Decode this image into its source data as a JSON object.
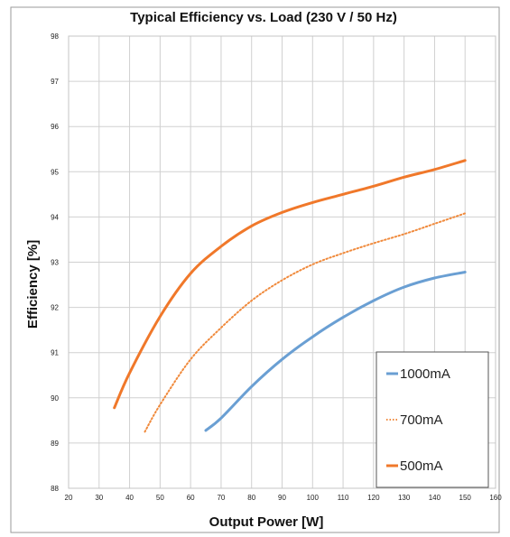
{
  "chart_data": {
    "type": "line",
    "title": "Typical Efficiency vs. Load (230 V / 50 Hz)",
    "xlabel": "Output Power [W]",
    "ylabel": "Efficiency [%]",
    "xlim": [
      20,
      160
    ],
    "ylim": [
      88,
      98
    ],
    "xticks": [
      "20",
      "30",
      "40",
      "50",
      "60",
      "70",
      "80",
      "90",
      "100",
      "110",
      "120",
      "130",
      "140",
      "150",
      "160"
    ],
    "yticks": [
      "88",
      "89",
      "90",
      "91",
      "92",
      "93",
      "94",
      "95",
      "96",
      "97",
      "98"
    ],
    "grid": true,
    "legend_position": "bottom-right",
    "series": [
      {
        "name": "1000mA",
        "color": "#6a9fd3",
        "style": "solid",
        "x": [
          65,
          70,
          80,
          90,
          100,
          110,
          120,
          130,
          140,
          150
        ],
        "y": [
          89.28,
          89.55,
          90.25,
          90.85,
          91.35,
          91.78,
          92.15,
          92.45,
          92.65,
          92.78
        ]
      },
      {
        "name": "700mA",
        "color": "#f08a3c",
        "style": "dotted",
        "x": [
          45,
          50,
          60,
          70,
          80,
          90,
          100,
          110,
          120,
          130,
          140,
          150
        ],
        "y": [
          89.25,
          89.85,
          90.85,
          91.55,
          92.15,
          92.6,
          92.95,
          93.2,
          93.42,
          93.62,
          93.85,
          94.08
        ]
      },
      {
        "name": "500mA",
        "color": "#f0782a",
        "style": "solid",
        "x": [
          35,
          40,
          50,
          60,
          70,
          80,
          90,
          100,
          110,
          120,
          130,
          140,
          150
        ],
        "y": [
          89.78,
          90.55,
          91.8,
          92.75,
          93.35,
          93.8,
          94.1,
          94.32,
          94.5,
          94.68,
          94.88,
          95.05,
          95.25
        ]
      }
    ]
  }
}
